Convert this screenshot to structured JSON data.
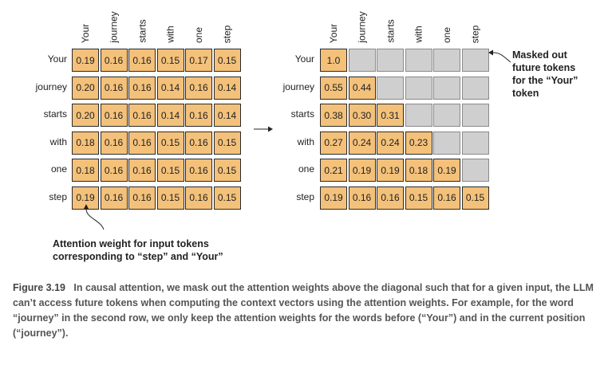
{
  "tokens": [
    "Your",
    "journey",
    "starts",
    "with",
    "one",
    "step"
  ],
  "left_matrix": [
    [
      "0.19",
      "0.16",
      "0.16",
      "0.15",
      "0.17",
      "0.15"
    ],
    [
      "0.20",
      "0.16",
      "0.16",
      "0.14",
      "0.16",
      "0.14"
    ],
    [
      "0.20",
      "0.16",
      "0.16",
      "0.14",
      "0.16",
      "0.14"
    ],
    [
      "0.18",
      "0.16",
      "0.16",
      "0.15",
      "0.16",
      "0.15"
    ],
    [
      "0.18",
      "0.16",
      "0.16",
      "0.15",
      "0.16",
      "0.15"
    ],
    [
      "0.19",
      "0.16",
      "0.16",
      "0.15",
      "0.16",
      "0.15"
    ]
  ],
  "right_matrix": [
    [
      "1.0",
      "",
      "",
      "",
      "",
      ""
    ],
    [
      "0.55",
      "0.44",
      "",
      "",
      "",
      ""
    ],
    [
      "0.38",
      "0.30",
      "0.31",
      "",
      "",
      ""
    ],
    [
      "0.27",
      "0.24",
      "0.24",
      "0.23",
      "",
      ""
    ],
    [
      "0.21",
      "0.19",
      "0.19",
      "0.18",
      "0.19",
      ""
    ],
    [
      "0.19",
      "0.16",
      "0.16",
      "0.15",
      "0.16",
      "0.15"
    ]
  ],
  "annotations": {
    "attention_note_line1": "Attention weight for input tokens",
    "attention_note_line2": "corresponding to “step” and “Your”",
    "masked_note_line1": "Masked out",
    "masked_note_line2": "future tokens",
    "masked_note_line3": "for the “Your”",
    "masked_note_line4": "token"
  },
  "caption": {
    "figure_label": "Figure 3.19",
    "text": "In causal attention, we mask out the attention weights above the diagonal such that for a given input, the LLM can’t access future tokens when computing the context vectors using the attention weights. For example, for the word “journey” in the second row, we only keep the attention weights for the words before (“Your”) and in the current position (“journey”)."
  },
  "colors": {
    "cell_fill": "#f4c17a",
    "masked_fill": "#cfcfcf"
  }
}
